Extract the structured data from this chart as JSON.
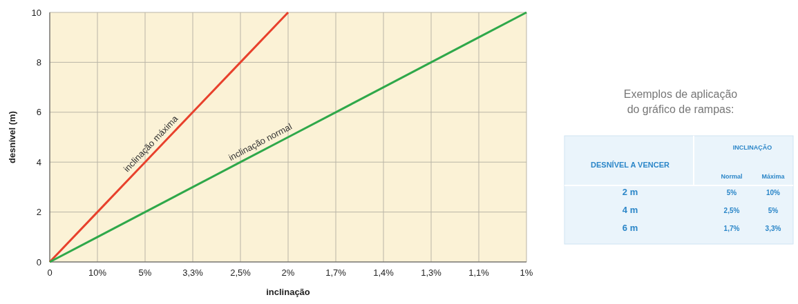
{
  "chart_data": [
    {
      "type": "line",
      "xlabel": "inclinação",
      "ylabel": "desnível (m)",
      "categories": [
        "0",
        "10%",
        "5%",
        "3,3%",
        "2,5%",
        "2%",
        "1,7%",
        "1,4%",
        "1,3%",
        "1,1%",
        "1%"
      ],
      "series": [
        {
          "name": "inclinação máxima",
          "color": "#e8412c",
          "values": [
            0,
            2,
            4,
            6,
            8,
            10,
            null,
            null,
            null,
            null,
            null
          ]
        },
        {
          "name": "inclinação normal",
          "color": "#2fa84a",
          "values": [
            0,
            1,
            2,
            3,
            4,
            5,
            6,
            7,
            8,
            9,
            10
          ]
        }
      ],
      "ylim": [
        0,
        10
      ],
      "yticks": [
        0,
        2,
        4,
        6,
        8,
        10
      ],
      "grid": true
    },
    {
      "type": "other",
      "title": "Exemplos de aplicação\ndo gráfico de rampas:",
      "annotations": [
        "DESNÍVEL A VENCER",
        "INCLINAÇÃO",
        "Normal",
        "Máxima",
        "2 m",
        "5%",
        "10%",
        "4 m",
        "2,5%",
        "5%",
        "6 m",
        "1,7%",
        "3,3%"
      ]
    }
  ]
}
